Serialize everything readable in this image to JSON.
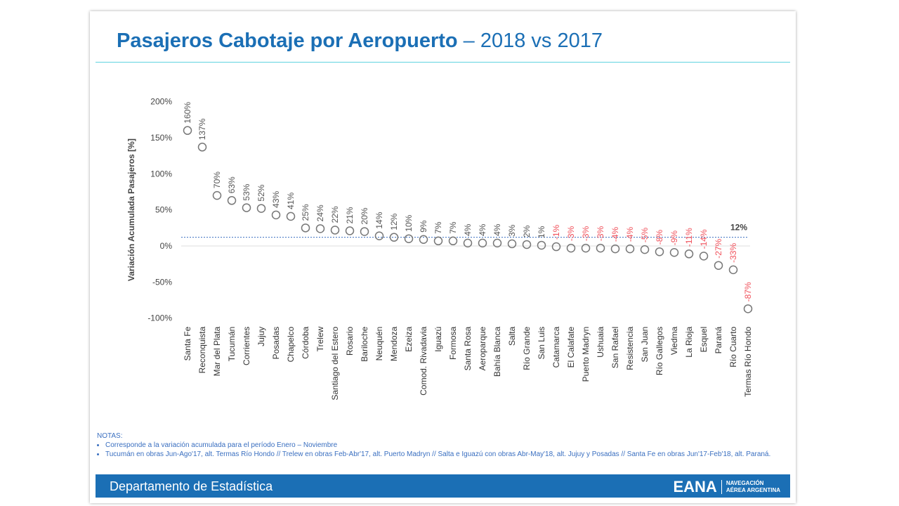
{
  "title": {
    "bold": "Pasajeros Cabotaje por Aeropuerto",
    "rest": " – 2018 vs 2017"
  },
  "chart_data": {
    "type": "scatter",
    "ylabel": "Variación Acumulada Pasajeros [%]",
    "ylim": [
      -100,
      200
    ],
    "yticks": [
      200,
      150,
      100,
      50,
      0,
      -50,
      -100
    ],
    "ytick_labels": [
      "200%",
      "150%",
      "100%",
      "50%",
      "0%",
      "-50%",
      "-100%"
    ],
    "reference_line": {
      "value": 12,
      "label": "12%"
    },
    "categories": [
      "Santa Fe",
      "Reconquista",
      "Mar del Plata",
      "Tucumán",
      "Corrientes",
      "Jujuy",
      "Posadas",
      "Chapelco",
      "Córdoba",
      "Trelew",
      "Santiago del Estero",
      "Rosario",
      "Bariloche",
      "Neuquén",
      "Mendoza",
      "Ezeiza",
      "Comod. Rivadavia",
      "Iguazú",
      "Formosa",
      "Santa Rosa",
      "Aeroparque",
      "Bahía Blanca",
      "Salta",
      "Río Grande",
      "San Luis",
      "Catamarca",
      "El Calafate",
      "Puerto Madryn",
      "Ushuaia",
      "San Rafael",
      "Resistencia",
      "San Juan",
      "Río Gallegos",
      "Viedma",
      "La Rioja",
      "Esquel",
      "Paraná",
      "Río Cuarto",
      "Termas Río Hondo"
    ],
    "values": [
      160,
      137,
      70,
      63,
      53,
      52,
      43,
      41,
      25,
      24,
      22,
      21,
      20,
      14,
      12,
      10,
      9,
      7,
      7,
      4,
      4,
      4,
      3,
      2,
      1,
      -1,
      -3,
      -3,
      -3,
      -4,
      -4,
      -5,
      -8,
      -9,
      -11,
      -14,
      -27,
      -33,
      -87
    ],
    "colors": {
      "positive": "#555555",
      "negative": "#f0505a",
      "reference": "#3a6fc0"
    }
  },
  "notes": {
    "heading": "NOTAS:",
    "items": [
      "Corresponde a la variación acumulada para el período Enero – Noviembre",
      "Tucumán en obras Jun-Ago'17, alt. Termas Río Hondo // Trelew en obras Feb-Abr'17, alt. Puerto Madryn // Salta e Iguazú con obras Abr-May'18, alt. Jujuy y Posadas // Santa Fe en obras Jun'17-Feb'18, alt. Paraná."
    ]
  },
  "footer": {
    "department": "Departamento de Estadística",
    "logo": "EANA",
    "logo_sub1": "NAVEGACIÓN",
    "logo_sub2": "AÉREA ARGENTINA"
  }
}
